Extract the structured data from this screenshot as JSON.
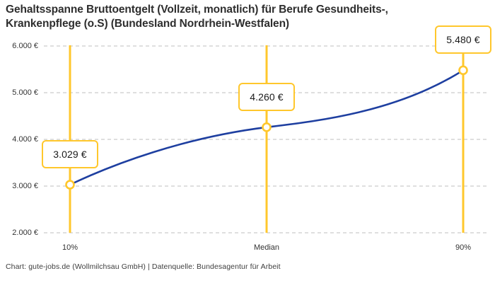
{
  "title": {
    "line1": "Gehaltsspanne Bruttoentgelt (Vollzeit, monatlich) für Berufe Gesundheits-,",
    "line2": "Krankenpflege (o.S) (Bundesland Nordrhein-Westfalen)"
  },
  "footer": "Chart: gute-jobs.de (Wollmilchsau GmbH) | Datenquelle: Bundesagentur für Arbeit",
  "chart_data": {
    "type": "line",
    "title": "Gehaltsspanne Bruttoentgelt (Vollzeit, monatlich) für Berufe Gesundheits-, Krankenpflege (o.S) (Bundesland Nordrhein-Westfalen)",
    "categories": [
      "10%",
      "Median",
      "90%"
    ],
    "values": [
      3029,
      4260,
      5480
    ],
    "value_labels": [
      "3.029 €",
      "4.260 €",
      "5.480 €"
    ],
    "xlabel": "",
    "ylabel": "",
    "ylim": [
      2000,
      6000
    ],
    "yticks": [
      6000,
      5000,
      4000,
      3000,
      2000
    ],
    "ytick_labels": [
      "6.000 €",
      "5.000 €",
      "4.000 €",
      "3.000 €",
      "2.000 €"
    ],
    "grid": "horizontal-dashed",
    "legend": "none",
    "colors": {
      "curve": "#1e3fa0",
      "accent": "#ffc72c",
      "grid": "#cccccc",
      "axis_text": "#333333",
      "box_text": "#1a1a1a"
    }
  }
}
